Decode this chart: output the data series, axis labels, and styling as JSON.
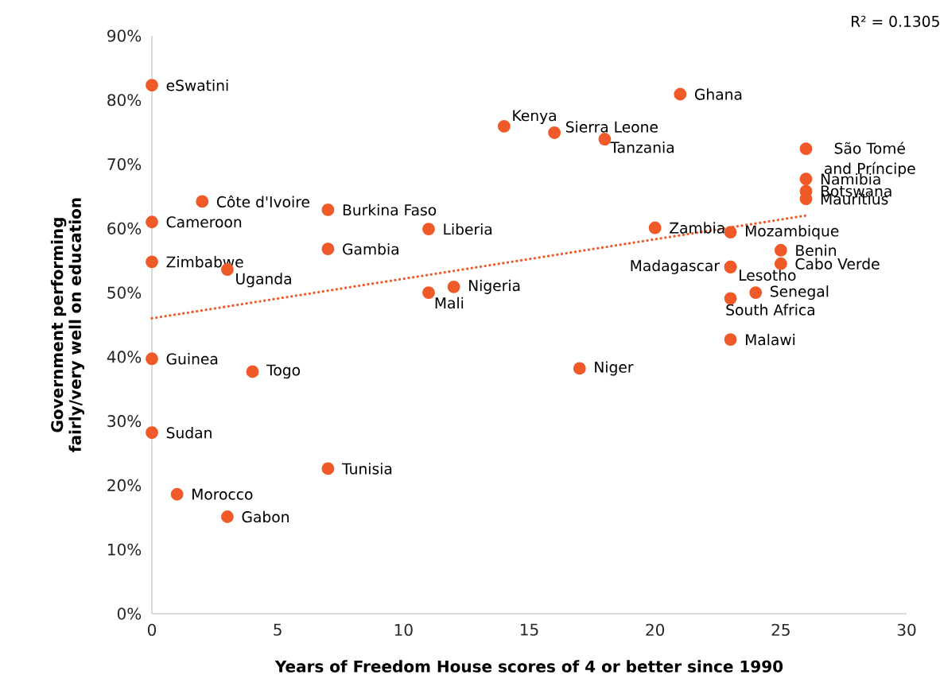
{
  "chart_data": {
    "type": "scatter",
    "xlabel": "Years of Freedom House scores of 4 or better since 1990",
    "ylabel": "Government performing fairly/very well on education",
    "xlim": [
      0,
      30
    ],
    "xticks": [
      0,
      5,
      10,
      15,
      20,
      25,
      30
    ],
    "ylim": [
      0,
      90
    ],
    "yticks": [
      {
        "value": 0,
        "label": "0%"
      },
      {
        "value": 10,
        "label": "10%"
      },
      {
        "value": 20,
        "label": "20%"
      },
      {
        "value": 30,
        "label": "30%"
      },
      {
        "value": 40,
        "label": "40%"
      },
      {
        "value": 50,
        "label": "50%"
      },
      {
        "value": 60,
        "label": "60%"
      },
      {
        "value": 70,
        "label": "70%"
      },
      {
        "value": 80,
        "label": "80%"
      },
      {
        "value": 90,
        "label": "90%"
      }
    ],
    "series": [
      {
        "type": "scatter",
        "marker": "circle",
        "color": "#f05a28",
        "x": [
          0,
          21,
          14,
          16,
          18,
          26,
          26,
          26,
          26,
          2,
          7,
          0,
          20,
          11,
          23,
          7,
          25,
          0,
          25,
          23,
          23,
          3,
          12,
          24,
          11,
          23,
          23,
          0,
          17,
          4,
          0,
          7,
          1,
          3
        ],
        "values": [
          82.3,
          80.9,
          75.9,
          74.9,
          73.9,
          72.4,
          67.7,
          65.8,
          64.6,
          64.2,
          62.9,
          61.0,
          60.1,
          59.9,
          59.4,
          56.8,
          56.6,
          54.8,
          54.5,
          54.0,
          54.0,
          53.6,
          50.9,
          50.0,
          50.0,
          49.1,
          42.7,
          39.7,
          38.2,
          37.7,
          28.2,
          22.6,
          18.6,
          15.1
        ]
      },
      {
        "type": "line",
        "color": "#f05a28",
        "line_style": "dotted",
        "x": [
          0,
          26
        ],
        "values": [
          46.0,
          62.0
        ]
      }
    ],
    "annotations": [
      "R² = 0.1305",
      {
        "text": "eSwatini",
        "x": 0,
        "y": 82.3
      },
      {
        "text": "Ghana",
        "x": 21,
        "y": 80.9
      },
      {
        "text": "Kenya",
        "x": 14,
        "y": 75.9
      },
      {
        "text": "Sierra Leone",
        "x": 16,
        "y": 74.9
      },
      {
        "text": "Tanzania",
        "x": 18,
        "y": 73.9
      },
      {
        "text": "São Tomé and Príncipe",
        "x": 26,
        "y": 72.4
      },
      {
        "text": "Namibia",
        "x": 26,
        "y": 67.7
      },
      {
        "text": "Botswana",
        "x": 26,
        "y": 65.8
      },
      {
        "text": "Mauritius",
        "x": 26,
        "y": 64.6
      },
      {
        "text": "Côte d'Ivoire",
        "x": 2,
        "y": 64.2
      },
      {
        "text": "Burkina Faso",
        "x": 7,
        "y": 62.9
      },
      {
        "text": "Cameroon",
        "x": 0,
        "y": 61.0
      },
      {
        "text": "Zambia",
        "x": 20,
        "y": 60.1
      },
      {
        "text": "Liberia",
        "x": 11,
        "y": 59.9
      },
      {
        "text": "Mozambique",
        "x": 23,
        "y": 59.4
      },
      {
        "text": "Gambia",
        "x": 7,
        "y": 56.8
      },
      {
        "text": "Benin",
        "x": 25,
        "y": 56.6
      },
      {
        "text": "Zimbabwe",
        "x": 0,
        "y": 54.8
      },
      {
        "text": "Cabo Verde",
        "x": 25,
        "y": 54.5
      },
      {
        "text": "Madagascar",
        "x": 23,
        "y": 54.0
      },
      {
        "text": "Lesotho",
        "x": 23,
        "y": 54.0
      },
      {
        "text": "Uganda",
        "x": 3,
        "y": 53.6
      },
      {
        "text": "Nigeria",
        "x": 12,
        "y": 50.9
      },
      {
        "text": "Senegal",
        "x": 24,
        "y": 50.0
      },
      {
        "text": "Mali",
        "x": 11,
        "y": 50.0
      },
      {
        "text": "South Africa",
        "x": 23,
        "y": 49.1
      },
      {
        "text": "Malawi",
        "x": 23,
        "y": 42.7
      },
      {
        "text": "Guinea",
        "x": 0,
        "y": 39.7
      },
      {
        "text": "Niger",
        "x": 17,
        "y": 38.2
      },
      {
        "text": "Togo",
        "x": 4,
        "y": 37.7
      },
      {
        "text": "Sudan",
        "x": 0,
        "y": 28.2
      },
      {
        "text": "Tunisia",
        "x": 7,
        "y": 22.6
      },
      {
        "text": "Morocco",
        "x": 1,
        "y": 18.6
      },
      {
        "text": "Gabon",
        "x": 3,
        "y": 15.1
      }
    ]
  }
}
